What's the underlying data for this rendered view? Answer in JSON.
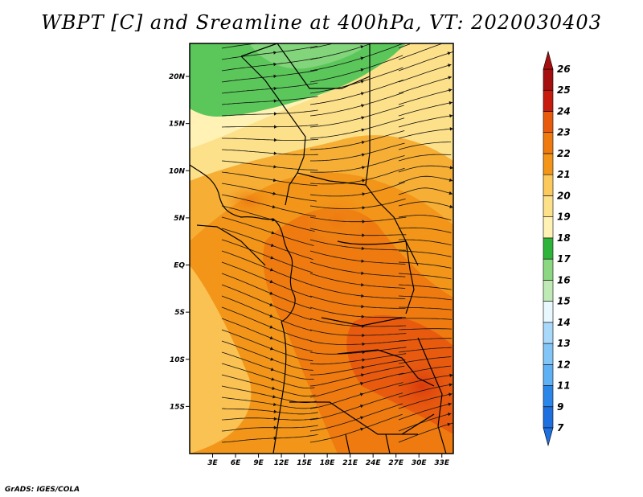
{
  "title": "WBPT [C] and Sreamline at 400hPa, VT: 2020030403",
  "credit": "GrADS: IGES/COLA",
  "chart_data": {
    "type": "heatmap",
    "title": "WBPT [C] and Sreamline at 400hPa, VT: 2020030403",
    "variable": "Wet-bulb potential temperature (WBPT) with streamlines",
    "units": "C",
    "level": "400hPa",
    "valid_time": "2020030403",
    "xlim": [
      0,
      34.5
    ],
    "ylim": [
      -20,
      23.5
    ],
    "x_ticks": [
      {
        "value": 3,
        "label": "3E"
      },
      {
        "value": 6,
        "label": "6E"
      },
      {
        "value": 9,
        "label": "9E"
      },
      {
        "value": 12,
        "label": "12E"
      },
      {
        "value": 15,
        "label": "15E"
      },
      {
        "value": 18,
        "label": "18E"
      },
      {
        "value": 21,
        "label": "21E"
      },
      {
        "value": 24,
        "label": "24E"
      },
      {
        "value": 27,
        "label": "27E"
      },
      {
        "value": 30,
        "label": "30E"
      },
      {
        "value": 33,
        "label": "33E"
      }
    ],
    "y_ticks": [
      {
        "value": 20,
        "label": "20N"
      },
      {
        "value": 15,
        "label": "15N"
      },
      {
        "value": 10,
        "label": "10N"
      },
      {
        "value": 5,
        "label": "5N"
      },
      {
        "value": 0,
        "label": "EQ"
      },
      {
        "value": -5,
        "label": "5S"
      },
      {
        "value": -10,
        "label": "10S"
      },
      {
        "value": -15,
        "label": "15S"
      }
    ],
    "colorbar": {
      "labels": [
        "7",
        "9",
        "11",
        "12",
        "13",
        "14",
        "15",
        "16",
        "17",
        "18",
        "19",
        "20",
        "21",
        "22",
        "23",
        "24",
        "25",
        "26"
      ],
      "colors": [
        "#1e6fe0",
        "#2b86ea",
        "#3f9bf0",
        "#5fb1f5",
        "#82c6f8",
        "#a8d9fb",
        "#cdeafd",
        "#e9f7ff",
        "#bfeab5",
        "#8cd882",
        "#5bc75a",
        "#2eb43a",
        "#fff2b4",
        "#fde08a",
        "#fbc95e",
        "#f6ae35",
        "#f29518",
        "#ee7a10",
        "#e85b0f",
        "#d9380d",
        "#c61b0d",
        "#a50f0f"
      ]
    },
    "approx_field": [
      {
        "region": "northwest Sahara",
        "value_range": "16-17"
      },
      {
        "region": "Sahel band",
        "value_range": "19-20"
      },
      {
        "region": "central Africa",
        "value_range": "21-22"
      },
      {
        "region": "Congo basin / East Africa",
        "value_range": "22-23"
      },
      {
        "region": "southeast Africa near 30E 15S",
        "value_range": "23-24"
      }
    ]
  }
}
